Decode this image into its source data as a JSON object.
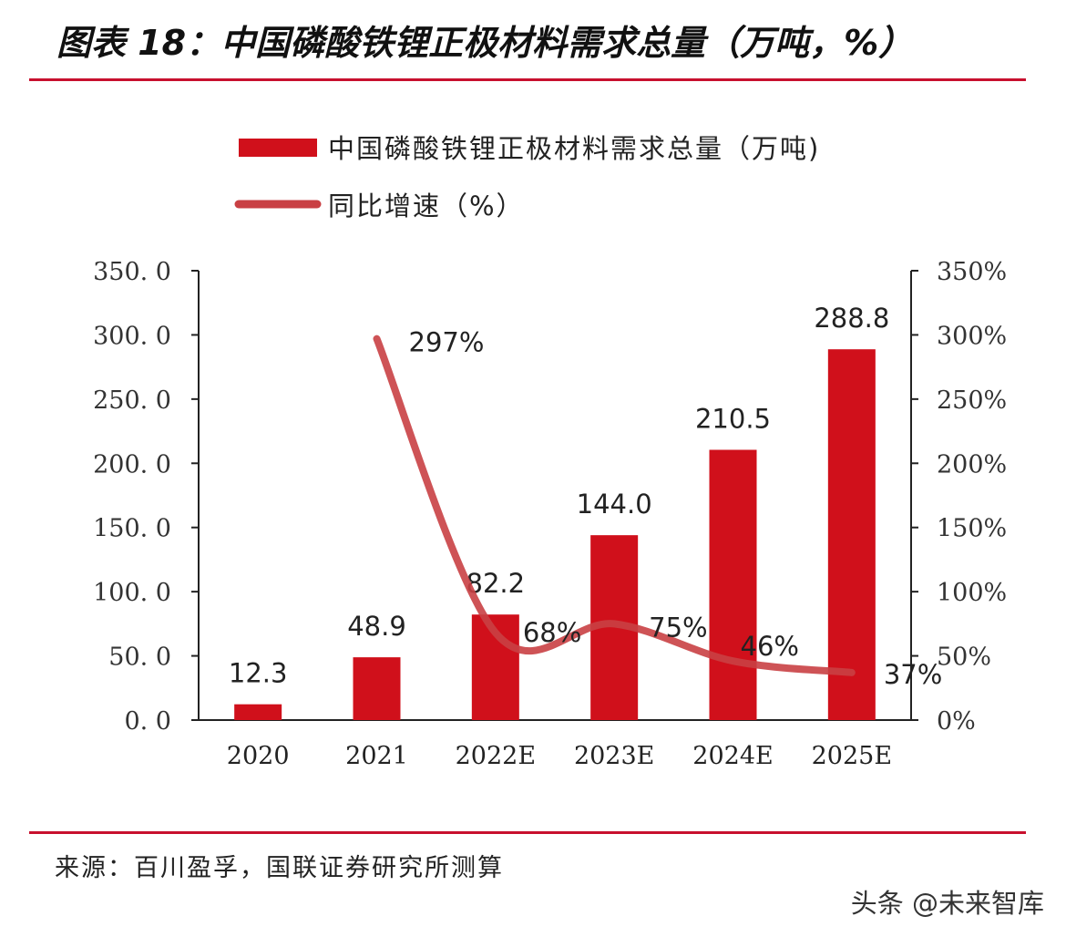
{
  "title": "图表 18：中国磷酸铁锂正极材料需求总量（万吨，%）",
  "source": "来源：百川盈孚，国联证券研究所测算",
  "watermark": "头条 @未来智库",
  "colors": {
    "accent": "#c8102e",
    "bar": "#d0101b",
    "line": "#c94044"
  },
  "chart_data": {
    "type": "bar",
    "categories": [
      "2020",
      "2021",
      "2022E",
      "2023E",
      "2024E",
      "2025E"
    ],
    "series": [
      {
        "name": "中国磷酸铁锂正极材料需求总量（万吨)",
        "type": "bar",
        "axis": "left",
        "values": [
          12.3,
          48.9,
          82.2,
          144.0,
          210.5,
          288.8
        ],
        "labels": [
          "12.3",
          "48.9",
          "82.2",
          "144.0",
          "210.5",
          "288.8"
        ]
      },
      {
        "name": "同比增速（%）",
        "type": "line",
        "axis": "right",
        "values": [
          null,
          297,
          68,
          75,
          46,
          37
        ],
        "labels": [
          "",
          "297%",
          "68%",
          "75%",
          "46%",
          "37%"
        ]
      }
    ],
    "ylim": [
      0,
      350
    ],
    "y2lim": [
      0,
      350
    ],
    "yticks": [
      "0. 0",
      "50. 0",
      "100. 0",
      "150. 0",
      "200. 0",
      "250. 0",
      "300. 0",
      "350. 0"
    ],
    "y2ticks": [
      "0%",
      "50%",
      "100%",
      "150%",
      "200%",
      "250%",
      "300%",
      "350%"
    ],
    "legend_position": "top",
    "grid": false
  }
}
